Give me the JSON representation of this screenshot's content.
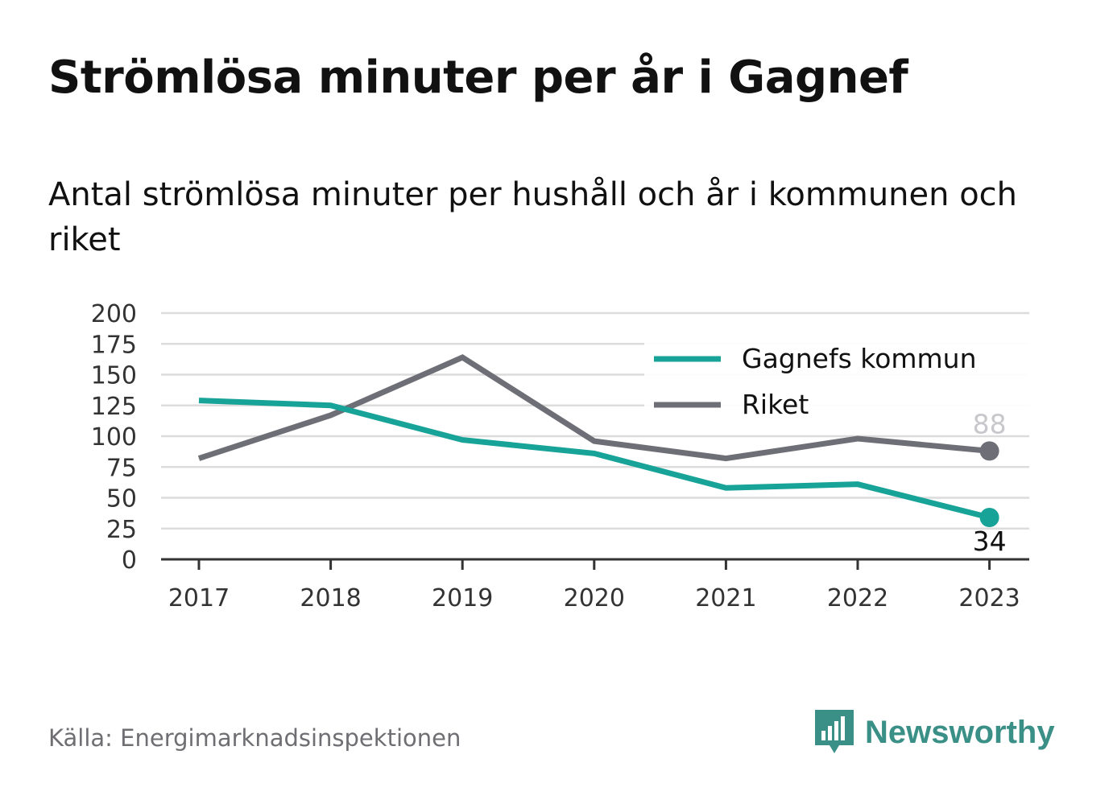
{
  "header": {
    "title": "Strömlösa minuter per år i Gagnef",
    "subtitle": "Antal strömlösa minuter per hushåll och år i kommunen och riket"
  },
  "footer": {
    "source": "Källa: Energimarknadsinspektionen",
    "brand": "Newsworthy",
    "brand_icon": "newsworthy-logo-icon"
  },
  "colors": {
    "gagnef": "#17a398",
    "riket": "#6e6e76",
    "grid": "#dcdcdc",
    "brand": "#3a8f86"
  },
  "chart_data": {
    "type": "line",
    "x": [
      "2017",
      "2018",
      "2019",
      "2020",
      "2021",
      "2022",
      "2023"
    ],
    "ylim": [
      0,
      200
    ],
    "yticks": [
      "0",
      "25",
      "50",
      "75",
      "100",
      "125",
      "150",
      "175",
      "200"
    ],
    "grid": true,
    "legend_position": "top-right",
    "series": [
      {
        "name": "Gagnefs kommun",
        "values": [
          129,
          125,
          97,
          86,
          58,
          61,
          34
        ],
        "end_label": "34"
      },
      {
        "name": "Riket",
        "values": [
          82,
          117,
          164,
          96,
          82,
          98,
          88
        ],
        "end_label": "88"
      }
    ]
  }
}
